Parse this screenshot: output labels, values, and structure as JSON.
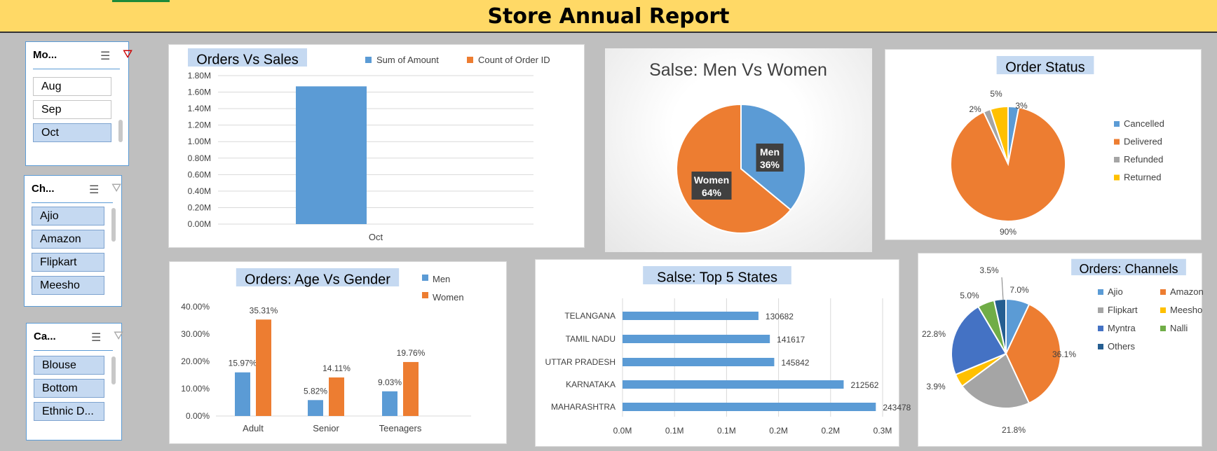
{
  "title": "Store Annual Report",
  "slicers": [
    {
      "header": "Mo...",
      "filter_active": true,
      "items": [
        {
          "label": "Aug",
          "selected": false
        },
        {
          "label": "Sep",
          "selected": false
        },
        {
          "label": "Oct",
          "selected": true
        }
      ]
    },
    {
      "header": "Ch...",
      "filter_active": false,
      "items": [
        {
          "label": "Ajio",
          "selected": true
        },
        {
          "label": "Amazon",
          "selected": true
        },
        {
          "label": "Flipkart",
          "selected": true
        },
        {
          "label": "Meesho",
          "selected": true
        }
      ]
    },
    {
      "header": "Ca...",
      "filter_active": false,
      "items": [
        {
          "label": "Blouse",
          "selected": true
        },
        {
          "label": "Bottom",
          "selected": true
        },
        {
          "label": "Ethnic D...",
          "selected": true
        }
      ]
    }
  ],
  "colors": {
    "blue": "#5b9bd5",
    "orange": "#ed7d31",
    "gray": "#a5a5a5",
    "yellow": "#ffc000",
    "darkblue": "#4472c4",
    "green": "#70ad47",
    "navy": "#255e91",
    "title_bg": "#c5d9f1"
  },
  "chart_data": [
    {
      "id": "orders-vs-sales",
      "type": "bar",
      "title": "Orders Vs Sales",
      "categories": [
        "Oct"
      ],
      "series": [
        {
          "name": "Sum of Amount",
          "values": [
            1670000
          ]
        },
        {
          "name": "Count of Order ID",
          "values": [
            0
          ]
        }
      ],
      "yticks": [
        "0.00M",
        "0.20M",
        "0.40M",
        "0.60M",
        "0.80M",
        "1.00M",
        "1.20M",
        "1.40M",
        "1.60M",
        "1.80M"
      ],
      "ylim": [
        0,
        1800000
      ],
      "legend": "top"
    },
    {
      "id": "men-vs-women",
      "type": "pie",
      "title": "Salse: Men Vs Women",
      "labels": [
        "Men",
        "Women"
      ],
      "values": [
        36,
        64
      ],
      "data_labels": [
        "36%",
        "64%"
      ]
    },
    {
      "id": "order-status",
      "type": "pie",
      "title": "Order Status",
      "labels": [
        "Cancelled",
        "Delivered",
        "Refunded",
        "Returned"
      ],
      "values": [
        3,
        90,
        2,
        5
      ],
      "data_labels": [
        "3%",
        "90%",
        "2%",
        "5%"
      ],
      "legend": "right"
    },
    {
      "id": "age-vs-gender",
      "type": "bar",
      "title": "Orders: Age Vs Gender",
      "categories": [
        "Adult",
        "Senior",
        "Teenagers"
      ],
      "series": [
        {
          "name": "Men",
          "values": [
            15.97,
            5.82,
            9.03
          ],
          "labels": [
            "15.97%",
            "5.82%",
            "9.03%"
          ]
        },
        {
          "name": "Women",
          "values": [
            35.31,
            14.11,
            19.76
          ],
          "labels": [
            "35.31%",
            "14.11%",
            "19.76%"
          ]
        }
      ],
      "yticks": [
        "0.00%",
        "10.00%",
        "20.00%",
        "30.00%",
        "40.00%"
      ],
      "ylim": [
        0,
        40
      ],
      "legend": "right"
    },
    {
      "id": "top-5-states",
      "type": "bar",
      "orientation": "horizontal",
      "title": "Salse: Top 5 States",
      "categories": [
        "TELANGANA",
        "TAMIL NADU",
        "UTTAR PRADESH",
        "KARNATAKA",
        "MAHARASHTRA"
      ],
      "values": [
        130682,
        141617,
        145842,
        212562,
        243478
      ],
      "value_labels": [
        "130682",
        "141617",
        "145842",
        "212562",
        "243478"
      ],
      "xticks": [
        "0.0M",
        "0.1M",
        "0.1M",
        "0.2M",
        "0.2M",
        "0.3M"
      ],
      "xlim": [
        0,
        250000
      ]
    },
    {
      "id": "orders-channels",
      "type": "pie",
      "title": "Orders: Channels",
      "labels": [
        "Ajio",
        "Amazon",
        "Flipkart",
        "Meesho",
        "Myntra",
        "Nalli",
        "Others"
      ],
      "values": [
        7.0,
        36.1,
        21.8,
        3.9,
        22.8,
        5.0,
        3.5
      ],
      "data_labels": [
        "7.0%",
        "36.1%",
        "21.8%",
        "3.9%",
        "22.8%",
        "5.0%",
        "3.5%"
      ],
      "legend": "right"
    }
  ]
}
